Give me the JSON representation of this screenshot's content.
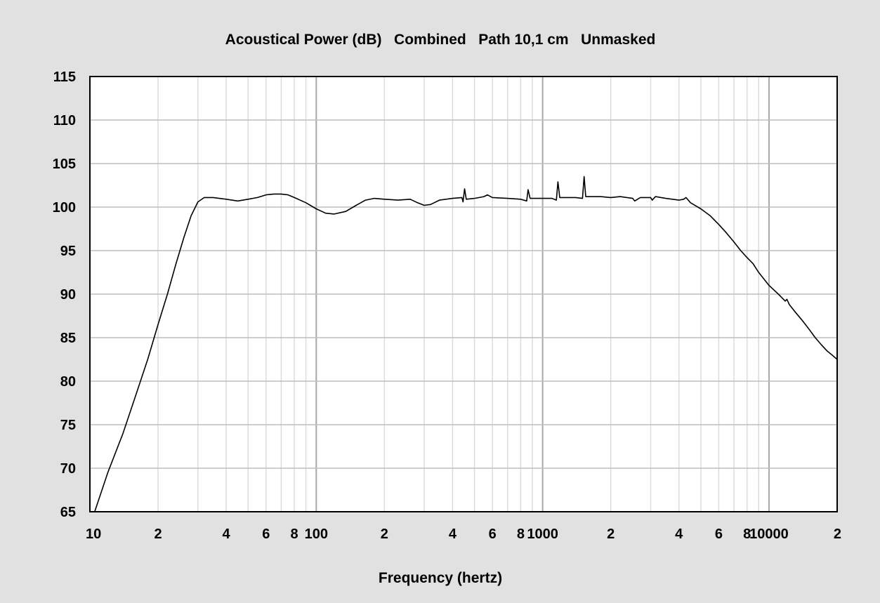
{
  "chart_data": {
    "type": "line",
    "title": "Acoustical Power (dB)   Combined   Path 10,1 cm   Unmasked",
    "xlabel": "Frequency (hertz)",
    "ylabel": "",
    "x_scale": "log",
    "xlim": [
      10,
      20000
    ],
    "ylim": [
      65,
      115
    ],
    "grid": true,
    "x_tick_labels": [
      {
        "value": 10,
        "label": "10"
      },
      {
        "value": 20,
        "label": "2"
      },
      {
        "value": 40,
        "label": "4"
      },
      {
        "value": 60,
        "label": "6"
      },
      {
        "value": 80,
        "label": "8"
      },
      {
        "value": 100,
        "label": "100"
      },
      {
        "value": 200,
        "label": "2"
      },
      {
        "value": 400,
        "label": "4"
      },
      {
        "value": 600,
        "label": "6"
      },
      {
        "value": 800,
        "label": "8"
      },
      {
        "value": 1000,
        "label": "1000"
      },
      {
        "value": 2000,
        "label": "2"
      },
      {
        "value": 4000,
        "label": "4"
      },
      {
        "value": 6000,
        "label": "6"
      },
      {
        "value": 8000,
        "label": "8"
      },
      {
        "value": 10000,
        "label": "10000"
      },
      {
        "value": 20000,
        "label": "2"
      }
    ],
    "y_ticks": [
      65,
      70,
      75,
      80,
      85,
      90,
      95,
      100,
      105,
      110,
      115
    ],
    "series": [
      {
        "name": "",
        "color": "#000000",
        "points": [
          [
            10.5,
            65.0
          ],
          [
            12,
            69.5
          ],
          [
            14,
            74.0
          ],
          [
            16,
            78.5
          ],
          [
            18,
            82.5
          ],
          [
            20,
            86.5
          ],
          [
            22,
            90.0
          ],
          [
            24,
            93.5
          ],
          [
            26,
            96.5
          ],
          [
            28,
            99.0
          ],
          [
            30,
            100.6
          ],
          [
            32,
            101.1
          ],
          [
            35,
            101.1
          ],
          [
            40,
            100.9
          ],
          [
            45,
            100.7
          ],
          [
            50,
            100.9
          ],
          [
            55,
            101.1
          ],
          [
            60,
            101.4
          ],
          [
            65,
            101.5
          ],
          [
            70,
            101.5
          ],
          [
            75,
            101.4
          ],
          [
            80,
            101.1
          ],
          [
            90,
            100.5
          ],
          [
            100,
            99.8
          ],
          [
            110,
            99.3
          ],
          [
            120,
            99.2
          ],
          [
            135,
            99.5
          ],
          [
            150,
            100.2
          ],
          [
            165,
            100.8
          ],
          [
            180,
            101.0
          ],
          [
            200,
            100.9
          ],
          [
            230,
            100.8
          ],
          [
            260,
            100.9
          ],
          [
            280,
            100.5
          ],
          [
            300,
            100.2
          ],
          [
            320,
            100.3
          ],
          [
            350,
            100.8
          ],
          [
            400,
            101.0
          ],
          [
            440,
            101.1
          ],
          [
            445,
            100.6
          ],
          [
            452,
            102.1
          ],
          [
            460,
            100.9
          ],
          [
            500,
            101.0
          ],
          [
            550,
            101.2
          ],
          [
            570,
            101.4
          ],
          [
            600,
            101.1
          ],
          [
            700,
            101.0
          ],
          [
            800,
            100.9
          ],
          [
            850,
            100.7
          ],
          [
            862,
            102.0
          ],
          [
            880,
            101.0
          ],
          [
            1000,
            101.0
          ],
          [
            1100,
            101.0
          ],
          [
            1150,
            100.8
          ],
          [
            1168,
            102.9
          ],
          [
            1190,
            101.1
          ],
          [
            1400,
            101.1
          ],
          [
            1500,
            101.0
          ],
          [
            1525,
            103.5
          ],
          [
            1550,
            101.2
          ],
          [
            1800,
            101.2
          ],
          [
            2000,
            101.1
          ],
          [
            2200,
            101.2
          ],
          [
            2500,
            101.0
          ],
          [
            2550,
            100.7
          ],
          [
            2700,
            101.1
          ],
          [
            3000,
            101.1
          ],
          [
            3050,
            100.8
          ],
          [
            3150,
            101.2
          ],
          [
            3500,
            101.0
          ],
          [
            4000,
            100.8
          ],
          [
            4200,
            100.9
          ],
          [
            4300,
            101.1
          ],
          [
            4500,
            100.5
          ],
          [
            5000,
            99.8
          ],
          [
            5500,
            99.0
          ],
          [
            6000,
            98.0
          ],
          [
            6500,
            97.0
          ],
          [
            7000,
            96.0
          ],
          [
            7500,
            95.0
          ],
          [
            8000,
            94.2
          ],
          [
            8500,
            93.5
          ],
          [
            9000,
            92.5
          ],
          [
            10000,
            91.0
          ],
          [
            11000,
            90.0
          ],
          [
            11800,
            89.2
          ],
          [
            12000,
            89.4
          ],
          [
            12300,
            88.8
          ],
          [
            13000,
            88.0
          ],
          [
            14000,
            87.0
          ],
          [
            15000,
            86.0
          ],
          [
            16000,
            85.0
          ],
          [
            17000,
            84.2
          ],
          [
            18000,
            83.5
          ],
          [
            19000,
            83.0
          ],
          [
            20000,
            82.5
          ]
        ]
      }
    ]
  }
}
